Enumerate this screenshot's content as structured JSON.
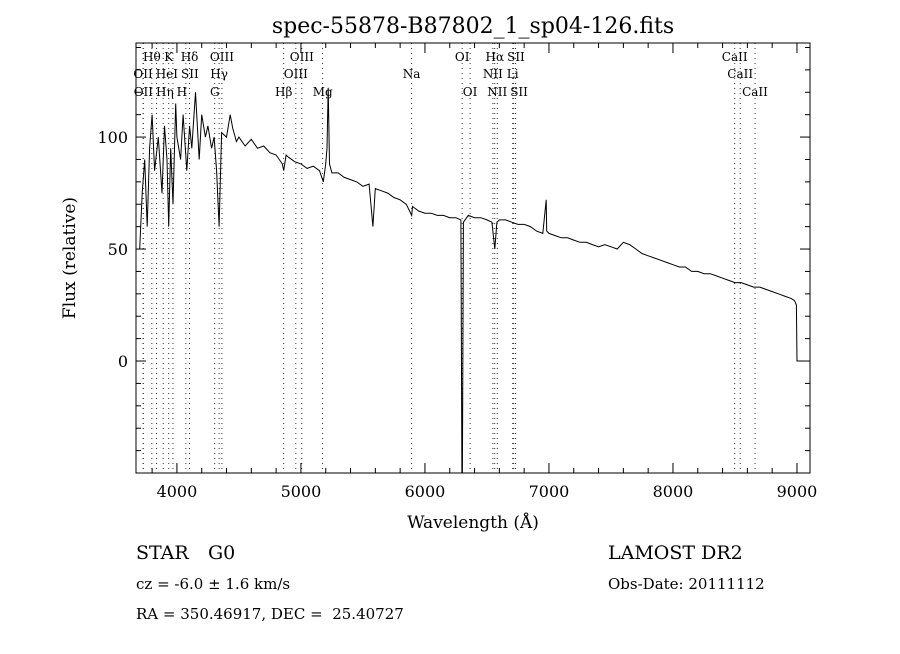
{
  "chart_data": {
    "type": "line",
    "title": "spec-55878-B87802_1_sp04-126.fits",
    "xlabel": "Wavelength (Å)",
    "ylabel": "Flux (relative)",
    "xlim": [
      3670,
      9105
    ],
    "ylim": [
      -50,
      142
    ],
    "xticks": [
      4000,
      5000,
      6000,
      7000,
      8000,
      9000
    ],
    "yticks": [
      0,
      50,
      100
    ],
    "x": [
      3690,
      3700,
      3720,
      3740,
      3760,
      3780,
      3800,
      3820,
      3850,
      3880,
      3900,
      3920,
      3934,
      3950,
      3968,
      3990,
      4000,
      4030,
      4050,
      4080,
      4102,
      4120,
      4150,
      4180,
      4200,
      4230,
      4250,
      4280,
      4300,
      4320,
      4340,
      4360,
      4400,
      4430,
      4450,
      4480,
      4500,
      4550,
      4600,
      4650,
      4700,
      4750,
      4800,
      4850,
      4861,
      4880,
      4900,
      4950,
      5000,
      5050,
      5100,
      5150,
      5180,
      5200,
      5210,
      5220,
      5230,
      5250,
      5300,
      5350,
      5400,
      5450,
      5500,
      5550,
      5580,
      5600,
      5650,
      5700,
      5750,
      5800,
      5850,
      5893,
      5900,
      5950,
      6000,
      6050,
      6100,
      6150,
      6200,
      6250,
      6290,
      6298,
      6302,
      6310,
      6350,
      6400,
      6450,
      6500,
      6540,
      6563,
      6580,
      6600,
      6650,
      6700,
      6750,
      6800,
      6850,
      6900,
      6950,
      6978,
      6982,
      7000,
      7050,
      7100,
      7150,
      7200,
      7250,
      7300,
      7350,
      7400,
      7450,
      7500,
      7550,
      7600,
      7650,
      7700,
      7750,
      7800,
      7850,
      7900,
      7950,
      8000,
      8050,
      8100,
      8150,
      8200,
      8250,
      8300,
      8350,
      8400,
      8450,
      8500,
      8550,
      8600,
      8650,
      8700,
      8750,
      8800,
      8850,
      8900,
      8950,
      8980,
      8995,
      9000,
      9040
    ],
    "y": [
      50,
      50,
      75,
      90,
      60,
      95,
      110,
      85,
      100,
      75,
      105,
      90,
      60,
      95,
      70,
      115,
      100,
      90,
      110,
      85,
      105,
      95,
      120,
      90,
      110,
      100,
      105,
      95,
      100,
      85,
      60,
      102,
      100,
      110,
      104,
      98,
      100,
      96,
      99,
      95,
      96,
      93,
      92,
      88,
      85,
      92,
      91,
      89,
      88,
      86,
      87,
      85,
      80,
      88,
      95,
      122,
      88,
      84,
      84,
      82,
      81,
      80,
      78,
      79,
      60,
      77,
      76,
      75,
      73,
      72,
      70,
      65,
      69,
      67,
      66,
      66,
      65,
      65,
      64,
      64,
      63,
      -50,
      -50,
      62,
      65,
      64,
      64,
      63,
      62,
      50,
      62,
      63,
      63,
      62,
      61,
      61,
      60,
      58,
      57,
      72,
      58,
      57,
      56,
      55,
      55,
      54,
      53,
      53,
      52,
      51,
      52,
      51,
      50,
      53,
      52,
      50,
      48,
      47,
      46,
      45,
      44,
      43,
      42,
      42,
      40,
      40,
      39,
      39,
      38,
      37,
      36,
      35,
      35,
      34,
      33,
      33,
      32,
      31,
      30,
      29,
      28,
      27,
      25,
      0,
      0
    ],
    "lines": [
      {
        "label": "Hθ",
        "w": 3798,
        "row": 0
      },
      {
        "label": "K",
        "w": 3934,
        "row": 0
      },
      {
        "label": "Hδ",
        "w": 4102,
        "row": 0
      },
      {
        "label": "OIII",
        "w": 4363,
        "row": 0
      },
      {
        "label": "OIII",
        "w": 5007,
        "row": 0
      },
      {
        "label": "OI",
        "w": 6300,
        "row": 0
      },
      {
        "label": "Hα",
        "w": 6563,
        "row": 0
      },
      {
        "label": "SII",
        "w": 6716,
        "row": 0
      },
      {
        "label": "CaII",
        "w": 8498,
        "row": 0
      },
      {
        "label": "OII",
        "w": 3727,
        "row": 1
      },
      {
        "label": "HeI",
        "w": 3889,
        "row": 1
      },
      {
        "label": "SII",
        "w": 4072,
        "row": 1
      },
      {
        "label": "Hγ",
        "w": 4340,
        "row": 1
      },
      {
        "label": "OIII",
        "w": 4959,
        "row": 1
      },
      {
        "label": "Na",
        "w": 5893,
        "row": 1
      },
      {
        "label": "NII",
        "w": 6548,
        "row": 1
      },
      {
        "label": "Li",
        "w": 6708,
        "row": 1
      },
      {
        "label": "CaII",
        "w": 8542,
        "row": 1
      },
      {
        "label": "OII",
        "w": 3729,
        "row": 2
      },
      {
        "label": "Hη",
        "w": 3835,
        "row": 2
      },
      {
        "label": "H",
        "w": 3968,
        "row": 2
      },
      {
        "label": "G",
        "w": 4305,
        "row": 2
      },
      {
        "label": "Hβ",
        "w": 4861,
        "row": 2
      },
      {
        "label": "Mg",
        "w": 5175,
        "row": 2
      },
      {
        "label": "OI",
        "w": 6364,
        "row": 2
      },
      {
        "label": "NII",
        "w": 6583,
        "row": 2
      },
      {
        "label": "SII",
        "w": 6731,
        "row": 2
      },
      {
        "label": "CaII",
        "w": 8662,
        "row": 2
      }
    ]
  },
  "info": {
    "class": "STAR",
    "subclass": "G0",
    "cz": "cz = -6.0 ± 1.6 km/s",
    "radec": "RA = 350.46917, DEC =  25.40727",
    "survey": "LAMOST DR2",
    "obsdate": "Obs-Date: 20111112"
  }
}
